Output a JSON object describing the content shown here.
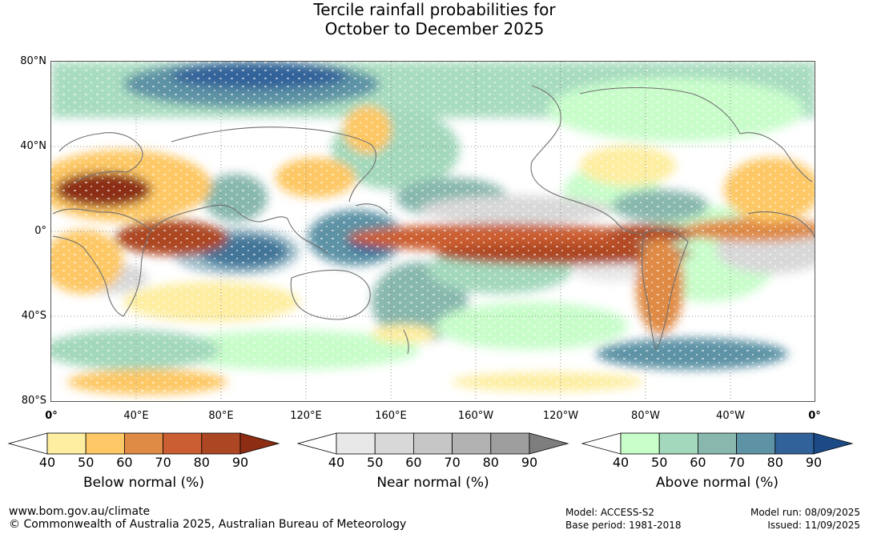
{
  "title": {
    "line1": "Tercile rainfall probabilities for",
    "line2": "October to December 2025"
  },
  "map": {
    "lat_labels": [
      "80°N",
      "40°N",
      "0°",
      "40°S",
      "80°S"
    ],
    "lon_labels": [
      "0°",
      "40°E",
      "80°E",
      "120°E",
      "160°E",
      "160°W",
      "120°W",
      "80°W",
      "40°W",
      "0°"
    ]
  },
  "legends": [
    {
      "title": "Below normal (%)",
      "ticks": [
        "40",
        "50",
        "60",
        "70",
        "80",
        "90"
      ],
      "colors": [
        "#ffffff",
        "#fdeea1",
        "#fdc865",
        "#e08b45",
        "#cc5e33",
        "#ad4623",
        "#8c2d14"
      ]
    },
    {
      "title": "Near normal (%)",
      "ticks": [
        "40",
        "50",
        "60",
        "70",
        "80",
        "90"
      ],
      "colors": [
        "#ffffff",
        "#e8e8e8",
        "#d8d8d8",
        "#c6c6c6",
        "#b2b2b2",
        "#9e9e9e",
        "#7e7e7e"
      ]
    },
    {
      "title": "Above normal (%)",
      "ticks": [
        "40",
        "50",
        "60",
        "70",
        "80",
        "90"
      ],
      "colors": [
        "#ffffff",
        "#c8fdca",
        "#a3d8bc",
        "#88b8ad",
        "#5d93a5",
        "#31629a",
        "#1b4a86"
      ]
    }
  ],
  "footer": {
    "website": "www.bom.gov.au/climate",
    "copyright": "© Commonwealth of Australia 2025, Australian Bureau of Meteorology",
    "model": "Model: ACCESS-S2",
    "base_period": "Base period: 1981-2018",
    "model_run": "Model run: 08/09/2025",
    "issued": "Issued: 11/09/2025"
  }
}
